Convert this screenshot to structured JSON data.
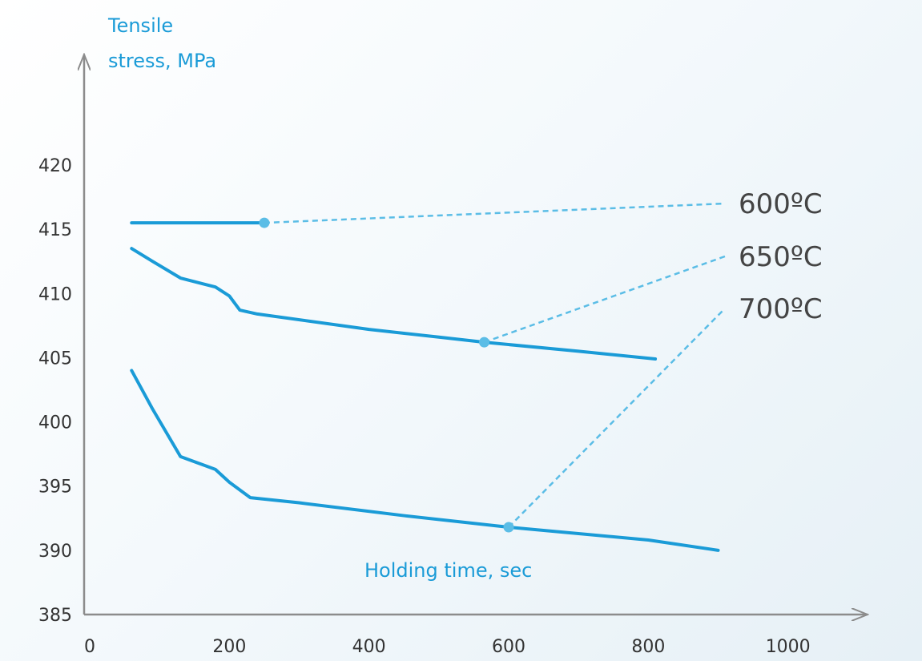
{
  "colors": {
    "line": "#1a9bd7",
    "leader": "#5bbde6",
    "axis": "#8c8c8c",
    "title": "#1a9bd7"
  },
  "chart_data": {
    "type": "line",
    "ylabel_line1": "Tensile",
    "ylabel_line2": "stress, MPa",
    "xlabel": "Holding time, sec",
    "xlim": [
      0,
      1000
    ],
    "ylim": [
      385,
      425
    ],
    "x_ticks": [
      "0",
      "200",
      "400",
      "600",
      "800",
      "1000"
    ],
    "y_ticks": [
      "385",
      "390",
      "395",
      "400",
      "405",
      "410",
      "415",
      "420"
    ],
    "series": [
      {
        "name": "600ºC",
        "points": [
          [
            60,
            415.5
          ],
          [
            250,
            415.5
          ]
        ],
        "marker": [
          250,
          415.5
        ]
      },
      {
        "name": "650ºC",
        "points": [
          [
            60,
            413.5
          ],
          [
            90,
            412.5
          ],
          [
            130,
            411.2
          ],
          [
            180,
            410.5
          ],
          [
            200,
            409.8
          ],
          [
            215,
            408.7
          ],
          [
            240,
            408.4
          ],
          [
            400,
            407.2
          ],
          [
            500,
            406.6
          ],
          [
            565,
            406.2
          ],
          [
            700,
            405.5
          ],
          [
            810,
            404.9
          ]
        ],
        "marker": [
          565,
          406.2
        ]
      },
      {
        "name": "700ºC",
        "points": [
          [
            60,
            404.0
          ],
          [
            90,
            401.0
          ],
          [
            130,
            397.3
          ],
          [
            155,
            396.8
          ],
          [
            180,
            396.3
          ],
          [
            200,
            395.3
          ],
          [
            230,
            394.1
          ],
          [
            300,
            393.7
          ],
          [
            450,
            392.7
          ],
          [
            600,
            391.8
          ],
          [
            800,
            390.8
          ],
          [
            900,
            390.0
          ]
        ],
        "marker": [
          600,
          391.8
        ]
      }
    ]
  }
}
